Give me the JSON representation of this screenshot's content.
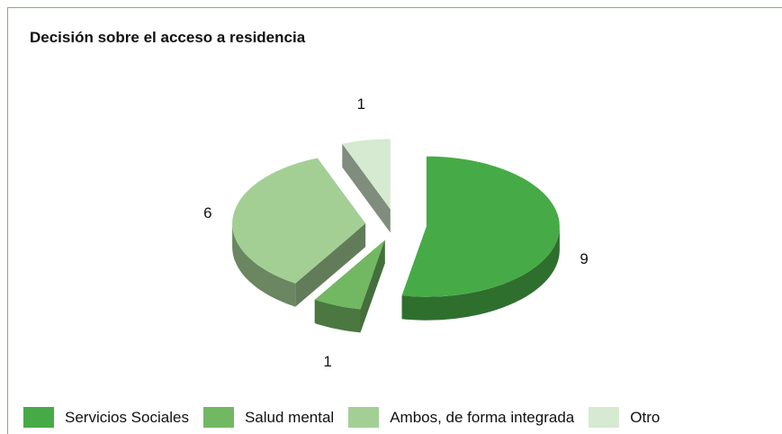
{
  "chart_data": {
    "type": "pie",
    "title": "Decisión sobre el acceso a residencia",
    "categories": [
      "Servicios Sociales",
      "Salud mental",
      "Ambos, de forma integrada",
      "Otro"
    ],
    "values": [
      9,
      1,
      6,
      1
    ],
    "colors": [
      "#46ab46",
      "#72b862",
      "#a3cf95",
      "#d5ead0"
    ],
    "legend": "bottom"
  }
}
